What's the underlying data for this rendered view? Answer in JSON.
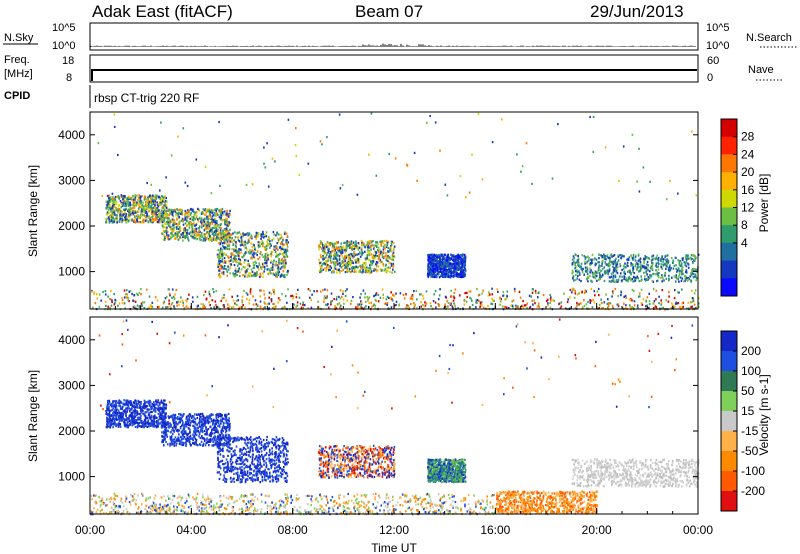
{
  "header": {
    "station": "Adak East (fitACF)",
    "beam": "Beam 07",
    "date": "29/Jun/2013"
  },
  "top_panels": {
    "nsky_label": "N.Sky",
    "nsky_ticks": [
      "10^5",
      "10^0"
    ],
    "nsearch_label": "N.Search",
    "nsearch_ticks": [
      "10^5",
      "10^0"
    ],
    "freq_label": "Freq.",
    "freq_unit": "[MHz]",
    "freq_ticks": [
      "18",
      "8"
    ],
    "nave_label": "Nave",
    "nave_ticks": [
      "60",
      "0"
    ],
    "cpid_label": "CPID",
    "cpid_text": "rbsp CT-trig 220 RF"
  },
  "chart_data": [
    {
      "type": "heatmap",
      "name": "power",
      "ylabel": "Slant Range [km]",
      "yticks": [
        1000,
        2000,
        3000,
        4000
      ],
      "ylim": [
        180,
        4500
      ],
      "xticks": [
        "00:00",
        "04:00",
        "08:00",
        "12:00",
        "16:00",
        "20:00",
        "00:00"
      ],
      "xlim_hours": [
        0,
        24
      ],
      "colorbar": {
        "label": "Power [dB]",
        "ticks": [
          "28",
          "24",
          "20",
          "16",
          "12",
          "8",
          "4"
        ],
        "colors": [
          "#d40000",
          "#ff2200",
          "#ff7700",
          "#ffb000",
          "#cfd800",
          "#6cbe45",
          "#2e9c6c",
          "#1f6fa0",
          "#1538c0",
          "#0a0aff"
        ]
      },
      "regions": [
        {
          "t0": 0.6,
          "t1": 3.0,
          "r0": 2100,
          "r1": 2700,
          "level": "mixed"
        },
        {
          "t0": 2.8,
          "t1": 5.5,
          "r0": 1700,
          "r1": 2400,
          "level": "mixed"
        },
        {
          "t0": 5.0,
          "t1": 7.8,
          "r0": 900,
          "r1": 1900,
          "level": "mixed"
        },
        {
          "t0": 9.0,
          "t1": 12.0,
          "r0": 1000,
          "r1": 1700,
          "level": "mixed"
        },
        {
          "t0": 13.3,
          "t1": 14.8,
          "r0": 900,
          "r1": 1400,
          "level": "blue"
        },
        {
          "t0": 19.0,
          "t1": 24.0,
          "r0": 800,
          "r1": 1400,
          "level": "green"
        },
        {
          "t0": 0.0,
          "t1": 24.0,
          "r0": 200,
          "r1": 650,
          "level": "noise"
        }
      ]
    },
    {
      "type": "heatmap",
      "name": "velocity",
      "ylabel": "Slant Range [km]",
      "yticks": [
        1000,
        2000,
        3000,
        4000
      ],
      "ylim": [
        180,
        4500
      ],
      "xticks": [
        "00:00",
        "04:00",
        "08:00",
        "12:00",
        "16:00",
        "20:00",
        "00:00"
      ],
      "xlabel": "Time UT",
      "xlim_hours": [
        0,
        24
      ],
      "colorbar": {
        "label": "Velocity [m s-1]",
        "ticks": [
          "200",
          "100",
          "50",
          "15",
          "-15",
          "-50",
          "-100",
          "-200"
        ],
        "colors": [
          "#1428c8",
          "#1f4fe0",
          "#2f7a55",
          "#7fd05a",
          "#c9c9c9",
          "#ffb24a",
          "#ff8a00",
          "#ff5a00",
          "#e01010"
        ]
      },
      "regions": [
        {
          "t0": 0.6,
          "t1": 3.0,
          "r0": 2100,
          "r1": 2700,
          "level": "blue"
        },
        {
          "t0": 2.8,
          "t1": 5.5,
          "r0": 1700,
          "r1": 2400,
          "level": "blue"
        },
        {
          "t0": 5.0,
          "t1": 7.8,
          "r0": 900,
          "r1": 1900,
          "level": "blue"
        },
        {
          "t0": 9.0,
          "t1": 12.0,
          "r0": 1000,
          "r1": 1700,
          "level": "mixed"
        },
        {
          "t0": 13.3,
          "t1": 14.8,
          "r0": 900,
          "r1": 1400,
          "level": "green"
        },
        {
          "t0": 16.0,
          "t1": 20.0,
          "r0": 200,
          "r1": 700,
          "level": "orange"
        },
        {
          "t0": 19.0,
          "t1": 24.0,
          "r0": 800,
          "r1": 1400,
          "level": "grey"
        },
        {
          "t0": 0.0,
          "t1": 16.0,
          "r0": 200,
          "r1": 650,
          "level": "noise"
        }
      ]
    }
  ]
}
